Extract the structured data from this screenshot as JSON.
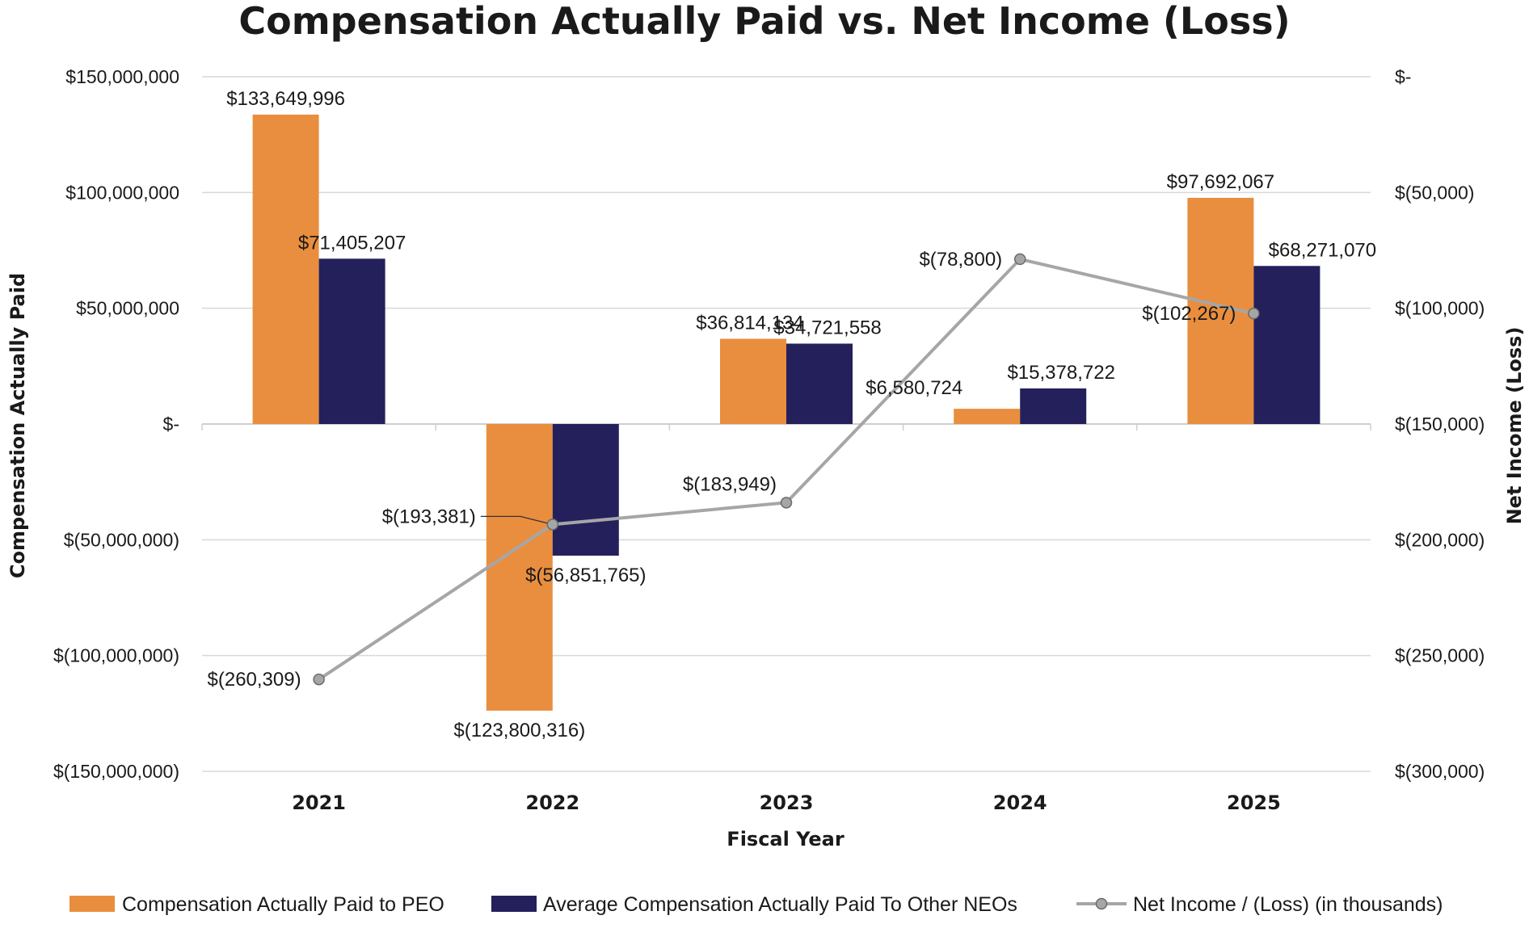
{
  "chart_data": {
    "type": "bar",
    "title": "Compensation Actually Paid vs. Net Income (Loss)",
    "xlabel": "Fiscal Year",
    "ylabel": "Compensation Actually Paid",
    "y2label": "Net Income (Loss)",
    "categories": [
      "2021",
      "2022",
      "2023",
      "2024",
      "2025"
    ],
    "ylim": [
      -150000000,
      150000000
    ],
    "yticks": [
      150000000,
      100000000,
      50000000,
      0,
      -50000000,
      -100000000,
      -150000000
    ],
    "ytick_labels": [
      "$150,000,000",
      "$100,000,000",
      "$50,000,000",
      "$-",
      "$(50,000,000)",
      "$(100,000,000)",
      "$(150,000,000)"
    ],
    "y2lim": [
      -300000,
      0
    ],
    "y2ticks": [
      0,
      -50000,
      -100000,
      -150000,
      -200000,
      -250000,
      -300000
    ],
    "y2tick_labels": [
      "$-",
      "$(50,000)",
      "$(100,000)",
      "$(150,000)",
      "$(200,000)",
      "$(250,000)",
      "$(300,000)"
    ],
    "grid": true,
    "legend": "bottom",
    "series": [
      {
        "name": "Compensation Actually Paid to PEO",
        "type": "bar",
        "axis": "left",
        "color": "#E98E3E",
        "values": [
          133649996,
          -123800316,
          36814134,
          6580724,
          97692067
        ],
        "labels": [
          "$133,649,996",
          "$(123,800,316)",
          "$36,814,134",
          "$6,580,724",
          "$97,692,067"
        ]
      },
      {
        "name": "Average Compensation Actually Paid To Other NEOs",
        "type": "bar",
        "axis": "left",
        "color": "#24205C",
        "values": [
          71405207,
          -56851765,
          34721558,
          15378722,
          68271070
        ],
        "labels": [
          "$71,405,207",
          "$(56,851,765)",
          "$34,721,558",
          "$15,378,722",
          "$68,271,070"
        ]
      },
      {
        "name": "Net Income / (Loss) (in thousands)",
        "type": "line",
        "axis": "right",
        "color": "#A6A6A6",
        "values": [
          -260309,
          -193381,
          -183949,
          -78800,
          -102267
        ],
        "labels": [
          "$(260,309)",
          "$(193,381)",
          "$(183,949)",
          "$(78,800)",
          "$(102,267)"
        ]
      }
    ]
  }
}
